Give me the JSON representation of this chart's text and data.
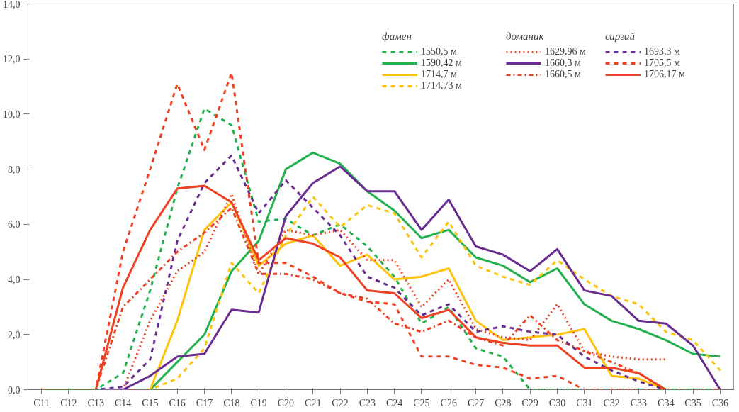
{
  "chart_data": {
    "type": "line",
    "categories": [
      "C11",
      "C12",
      "C13",
      "C14",
      "C15",
      "C16",
      "C17",
      "C18",
      "C19",
      "C20",
      "C21",
      "C22",
      "C23",
      "C24",
      "C25",
      "C26",
      "C27",
      "C28",
      "C29",
      "C30",
      "C31",
      "C32",
      "C33",
      "C34",
      "C35",
      "C36"
    ],
    "ylim": [
      0,
      14
    ],
    "yticks": [
      {
        "value": 0,
        "label": "0,0"
      },
      {
        "value": 2,
        "label": "2,0"
      },
      {
        "value": 4,
        "label": "4,0"
      },
      {
        "value": 6,
        "label": "6,0"
      },
      {
        "value": 8,
        "label": "8,0"
      },
      {
        "value": 10,
        "label": "10,0"
      },
      {
        "value": 12,
        "label": "12,0"
      },
      {
        "value": 14,
        "label": "14,0"
      }
    ],
    "grid": false,
    "legend": "top right",
    "marker": "none",
    "annotations": [
      "фамен",
      "доманик",
      "саргай"
    ],
    "series": [
      {
        "name": "1550,5 м",
        "color": "#22b14c",
        "line_style": "dashed",
        "values": [
          0,
          0,
          0,
          0.6,
          3.6,
          7.3,
          10.2,
          9.6,
          6.1,
          6.2,
          5.6,
          6.0,
          5.2,
          4.1,
          2.4,
          3.0,
          1.5,
          1.2,
          0,
          0,
          0,
          0,
          null,
          null,
          null,
          null
        ]
      },
      {
        "name": "1590,42 м",
        "color": "#22b14c",
        "line_style": "solid",
        "values": [
          0,
          0,
          0,
          0,
          0,
          1.0,
          2.0,
          4.3,
          5.4,
          8.0,
          8.6,
          8.2,
          7.2,
          6.5,
          5.5,
          5.8,
          4.8,
          4.5,
          3.9,
          4.4,
          3.1,
          2.5,
          2.2,
          1.8,
          1.3,
          1.2
        ]
      },
      {
        "name": "1714,7 м",
        "color": "#ffc20e",
        "line_style": "solid",
        "values": [
          null,
          null,
          0,
          0,
          0,
          2.5,
          5.8,
          6.8,
          4.5,
          5.3,
          5.6,
          4.5,
          4.9,
          4.0,
          4.1,
          4.4,
          2.5,
          1.8,
          1.9,
          2.0,
          2.2,
          0.5,
          0.4,
          0,
          null,
          null
        ]
      },
      {
        "name": "1714,73 м",
        "color": "#ffc20e",
        "line_style": "dashed",
        "values": [
          null,
          null,
          0,
          0,
          0,
          0.4,
          1.5,
          4.6,
          3.5,
          5.6,
          7.0,
          5.9,
          6.7,
          6.4,
          4.8,
          6.1,
          4.5,
          4.1,
          3.8,
          4.7,
          4.0,
          3.4,
          3.1,
          2.1,
          1.8,
          0.7
        ]
      },
      {
        "name": "1629,96 м",
        "color": "#ef4123",
        "line_style": "dotted",
        "values": [
          0,
          0,
          0,
          0,
          2.5,
          4.3,
          5.0,
          7.1,
          4.2,
          5.8,
          5.6,
          5.8,
          4.7,
          4.7,
          3.0,
          4.0,
          2.2,
          1.9,
          1.8,
          3.1,
          1.4,
          1.2,
          1.1,
          1.1,
          null,
          null
        ]
      },
      {
        "name": "1660,3 м",
        "color": "#6a2c91",
        "line_style": "solid",
        "values": [
          0,
          0,
          0,
          0,
          0.5,
          1.2,
          1.3,
          2.9,
          2.8,
          6.3,
          7.5,
          8.1,
          7.2,
          7.2,
          5.8,
          6.9,
          5.2,
          4.9,
          4.3,
          5.1,
          3.6,
          3.4,
          2.5,
          2.4,
          1.6,
          0
        ]
      },
      {
        "name": "1660,5 м",
        "color": "#ef4123",
        "line_style": "dashdot",
        "values": [
          0,
          0,
          0,
          3.0,
          4.0,
          5.0,
          5.7,
          6.6,
          4.2,
          4.2,
          4.0,
          3.5,
          3.3,
          2.4,
          2.1,
          2.5,
          1.9,
          1.6,
          2.7,
          1.8,
          1.4,
          1.0,
          0.6,
          0,
          0,
          0
        ]
      },
      {
        "name": "1693,3 м",
        "color": "#6a2c91",
        "line_style": "dashed",
        "values": [
          0,
          0,
          0,
          0.1,
          1.1,
          5.4,
          7.5,
          8.5,
          6.4,
          7.6,
          6.6,
          5.6,
          4.1,
          3.7,
          2.7,
          3.1,
          2.1,
          2.3,
          2.1,
          2.0,
          1.2,
          0.7,
          0.3,
          0,
          null,
          null
        ]
      },
      {
        "name": "1705,5 м",
        "color": "#ef4123",
        "line_style": "dashed",
        "values": [
          0,
          0,
          0,
          5.0,
          8.0,
          11.1,
          8.7,
          11.5,
          4.6,
          4.6,
          4.1,
          3.5,
          3.2,
          3.1,
          1.2,
          1.2,
          0.9,
          0.8,
          0.4,
          0.5,
          0,
          0,
          0,
          0,
          0,
          0
        ]
      },
      {
        "name": "1706,17 м",
        "color": "#ef4123",
        "line_style": "solid",
        "values": [
          0,
          0,
          0,
          3.7,
          5.8,
          7.3,
          7.4,
          6.8,
          4.7,
          5.5,
          5.3,
          4.8,
          3.6,
          3.5,
          2.6,
          2.9,
          1.9,
          1.7,
          1.6,
          1.6,
          0.8,
          0.8,
          0.6,
          0,
          null,
          null
        ]
      }
    ]
  }
}
